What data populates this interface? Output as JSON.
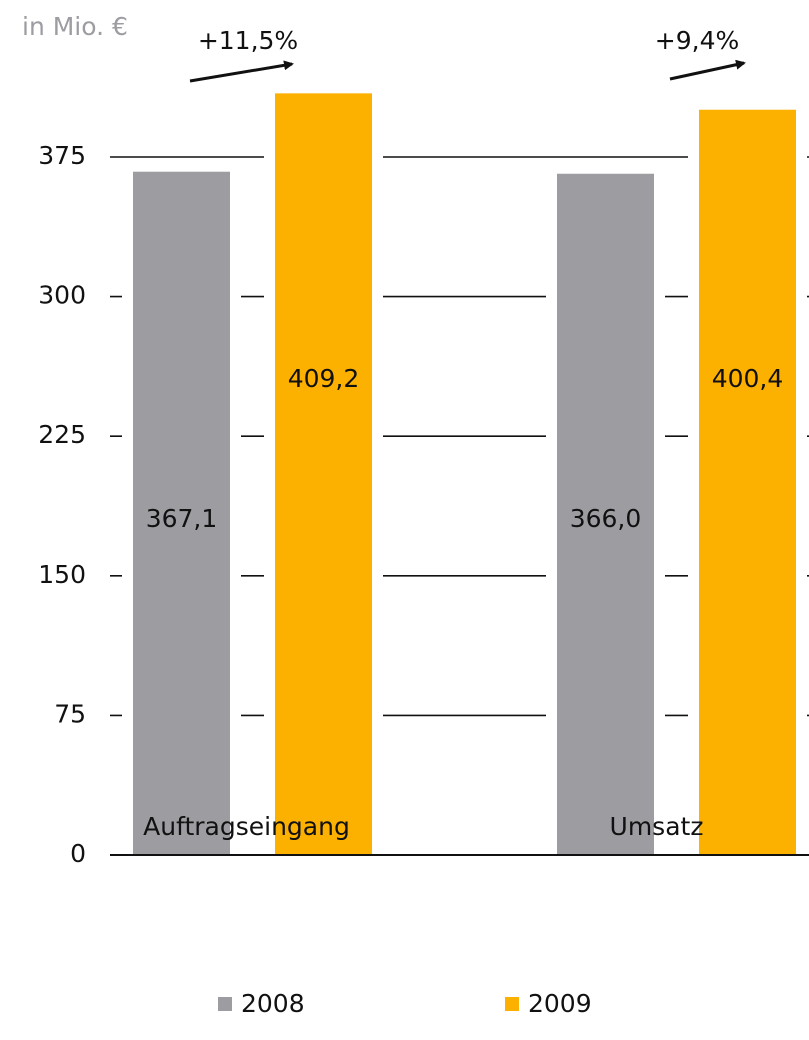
{
  "chart_data": {
    "type": "bar",
    "unit_label": "in Mio. €",
    "categories": [
      "Auftragseingang",
      "Umsatz"
    ],
    "series": [
      {
        "name": "2008",
        "color": "#9d9ca1",
        "values": [
          367.1,
          366.0
        ],
        "value_labels": [
          "367,1",
          "366,0"
        ]
      },
      {
        "name": "2009",
        "color": "#fcb000",
        "values": [
          409.2,
          400.4
        ],
        "value_labels": [
          "409,2",
          "400,4"
        ]
      }
    ],
    "annotations": [
      "+11,5%",
      "+9,4%"
    ],
    "ylim": [
      0,
      375
    ],
    "yticks": [
      0,
      75,
      150,
      225,
      300,
      375
    ],
    "grid": true
  }
}
